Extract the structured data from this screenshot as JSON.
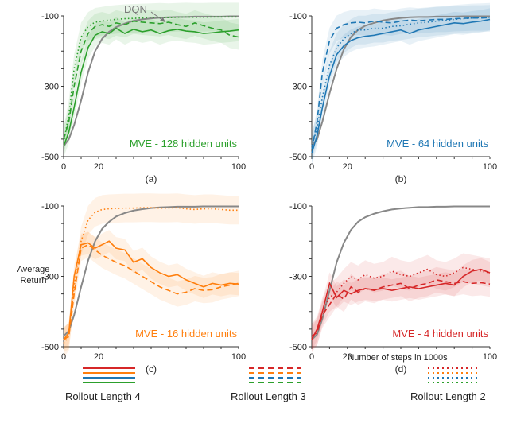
{
  "chart_data": {
    "type": "line",
    "shared": {
      "ylabel": "Average\nReturn",
      "xlabel_d": "Number of steps in 1000s",
      "xlim": [
        0,
        100
      ],
      "ylim": [
        -500,
        -100
      ],
      "x_ticks": [
        "0",
        "20",
        "100"
      ],
      "y_ticks": [
        "-100",
        "-300",
        "-500"
      ],
      "dqn_label": "DQN",
      "dqn_color": "#888888"
    },
    "panels": [
      {
        "id": "a",
        "panel_label": "(a)",
        "title": "MVE - 128 hidden units",
        "color": "#2ca02c",
        "x": [
          0,
          3,
          6,
          10,
          14,
          18,
          22,
          26,
          30,
          35,
          40,
          45,
          50,
          55,
          60,
          65,
          70,
          75,
          80,
          85,
          90,
          95,
          100
        ],
        "dqn": [
          -470,
          -450,
          -410,
          -340,
          -260,
          -200,
          -165,
          -145,
          -132,
          -122,
          -114,
          -110,
          -107,
          -105,
          -104,
          -103,
          -103,
          -102,
          -102,
          -102,
          -102,
          -101,
          -101
        ],
        "series": [
          {
            "name": "Rollout Length 4",
            "style": "solid",
            "values": [
              -470,
              -430,
              -360,
              -260,
              -190,
              -155,
              -145,
              -150,
              -135,
              -150,
              -138,
              -145,
              -140,
              -150,
              -142,
              -138,
              -143,
              -145,
              -150,
              -148,
              -145,
              -143,
              -140
            ]
          },
          {
            "name": "Rollout Length 3",
            "style": "dashed",
            "values": [
              -450,
              -400,
              -300,
              -200,
              -150,
              -130,
              -125,
              -130,
              -120,
              -125,
              -115,
              -118,
              -120,
              -122,
              -118,
              -125,
              -130,
              -120,
              -128,
              -135,
              -140,
              -155,
              -160
            ]
          },
          {
            "name": "Rollout Length 2",
            "style": "dotted",
            "values": [
              -460,
              -380,
              -250,
              -160,
              -130,
              -118,
              -115,
              -112,
              -110,
              -108,
              -107,
              -106,
              -105,
              -104,
              -105,
              -104,
              -103,
              -104,
              -104,
              -103,
              -103,
              -103,
              -103
            ]
          }
        ]
      },
      {
        "id": "b",
        "panel_label": "(b)",
        "title": "MVE - 64 hidden units",
        "color": "#1f77b4",
        "x": [
          0,
          3,
          6,
          10,
          14,
          18,
          22,
          26,
          30,
          35,
          40,
          45,
          50,
          55,
          60,
          65,
          70,
          75,
          80,
          85,
          90,
          95,
          100
        ],
        "dqn": [
          -470,
          -450,
          -400,
          -320,
          -250,
          -195,
          -160,
          -140,
          -128,
          -120,
          -113,
          -109,
          -106,
          -104,
          -103,
          -103,
          -102,
          -102,
          -102,
          -101,
          -101,
          -101,
          -101
        ],
        "series": [
          {
            "name": "Rollout Length 4",
            "style": "solid",
            "values": [
              -490,
              -440,
              -360,
              -270,
              -210,
              -185,
              -170,
              -162,
              -158,
              -155,
              -150,
              -145,
              -140,
              -150,
              -140,
              -135,
              -130,
              -125,
              -120,
              -122,
              -118,
              -115,
              -110
            ]
          },
          {
            "name": "Rollout Length 3",
            "style": "dashed",
            "values": [
              -480,
              -400,
              -260,
              -170,
              -135,
              -125,
              -120,
              -118,
              -120,
              -115,
              -118,
              -120,
              -115,
              -112,
              -114,
              -112,
              -110,
              -110,
              -108,
              -107,
              -106,
              -106,
              -105
            ]
          },
          {
            "name": "Rollout Length 2",
            "style": "dotted",
            "values": [
              -470,
              -420,
              -330,
              -240,
              -190,
              -165,
              -150,
              -140,
              -140,
              -135,
              -135,
              -130,
              -128,
              -124,
              -120,
              -118,
              -115,
              -113,
              -110,
              -108,
              -106,
              -105,
              -104
            ]
          }
        ]
      },
      {
        "id": "c",
        "panel_label": "(c)",
        "title": "MVE - 16 hidden units",
        "color": "#ff7f0e",
        "x": [
          0,
          3,
          6,
          10,
          14,
          18,
          22,
          26,
          30,
          35,
          40,
          45,
          50,
          55,
          60,
          65,
          70,
          75,
          80,
          85,
          90,
          95,
          100
        ],
        "dqn": [
          -470,
          -455,
          -410,
          -330,
          -255,
          -200,
          -165,
          -145,
          -130,
          -120,
          -113,
          -109,
          -106,
          -104,
          -103,
          -102,
          -102,
          -102,
          -101,
          -101,
          -101,
          -101,
          -101
        ],
        "series": [
          {
            "name": "Rollout Length 4",
            "style": "solid",
            "values": [
              -480,
              -460,
              -300,
              -210,
              -205,
              -220,
              -210,
              -200,
              -220,
              -225,
              -260,
              -250,
              -275,
              -290,
              -300,
              -295,
              -310,
              -320,
              -330,
              -320,
              -325,
              -320,
              -322
            ]
          },
          {
            "name": "Rollout Length 3",
            "style": "dashed",
            "values": [
              -480,
              -470,
              -350,
              -220,
              -210,
              -225,
              -240,
              -250,
              -260,
              -270,
              -285,
              -300,
              -315,
              -330,
              -340,
              -350,
              -345,
              -335,
              -340,
              -338,
              -330,
              -325,
              -320
            ]
          },
          {
            "name": "Rollout Length 2",
            "style": "dotted",
            "values": [
              -490,
              -470,
              -330,
              -200,
              -140,
              -118,
              -110,
              -108,
              -107,
              -106,
              -106,
              -105,
              -105,
              -106,
              -106,
              -105,
              -108,
              -110,
              -108,
              -108,
              -110,
              -112,
              -112
            ]
          }
        ]
      },
      {
        "id": "d",
        "panel_label": "(d)",
        "title": "MVE - 4 hidden units",
        "color": "#d62728",
        "x": [
          0,
          3,
          6,
          10,
          14,
          18,
          22,
          26,
          30,
          35,
          40,
          45,
          50,
          55,
          60,
          65,
          70,
          75,
          80,
          85,
          90,
          95,
          100
        ],
        "dqn": [
          -480,
          -465,
          -420,
          -340,
          -260,
          -205,
          -168,
          -145,
          -132,
          -122,
          -115,
          -110,
          -107,
          -105,
          -103,
          -103,
          -102,
          -102,
          -101,
          -101,
          -101,
          -101,
          -101
        ],
        "series": [
          {
            "name": "Rollout Length 4",
            "style": "solid",
            "values": [
              -480,
              -450,
              -400,
              -320,
              -360,
              -340,
              -350,
              -340,
              -335,
              -338,
              -335,
              -340,
              -335,
              -330,
              -335,
              -330,
              -325,
              -320,
              -325,
              -300,
              -285,
              -280,
              -290
            ]
          },
          {
            "name": "Rollout Length 3",
            "style": "dashed",
            "values": [
              -470,
              -460,
              -410,
              -380,
              -350,
              -365,
              -330,
              -345,
              -335,
              -340,
              -330,
              -325,
              -320,
              -335,
              -325,
              -320,
              -310,
              -315,
              -320,
              -315,
              -320,
              -318,
              -322
            ]
          },
          {
            "name": "Rollout Length 2",
            "style": "dotted",
            "values": [
              -475,
              -455,
              -400,
              -360,
              -345,
              -320,
              -300,
              -310,
              -295,
              -305,
              -300,
              -285,
              -295,
              -300,
              -290,
              -280,
              -295,
              -300,
              -290,
              -275,
              -280,
              -285,
              -290
            ]
          }
        ]
      }
    ]
  },
  "legend": {
    "rollout4_label": "Rollout Length 4",
    "rollout3_label": "Rollout Length 3",
    "rollout2_label": "Rollout Length 2",
    "colors": [
      "#d62728",
      "#ff7f0e",
      "#1f77b4",
      "#2ca02c"
    ]
  }
}
